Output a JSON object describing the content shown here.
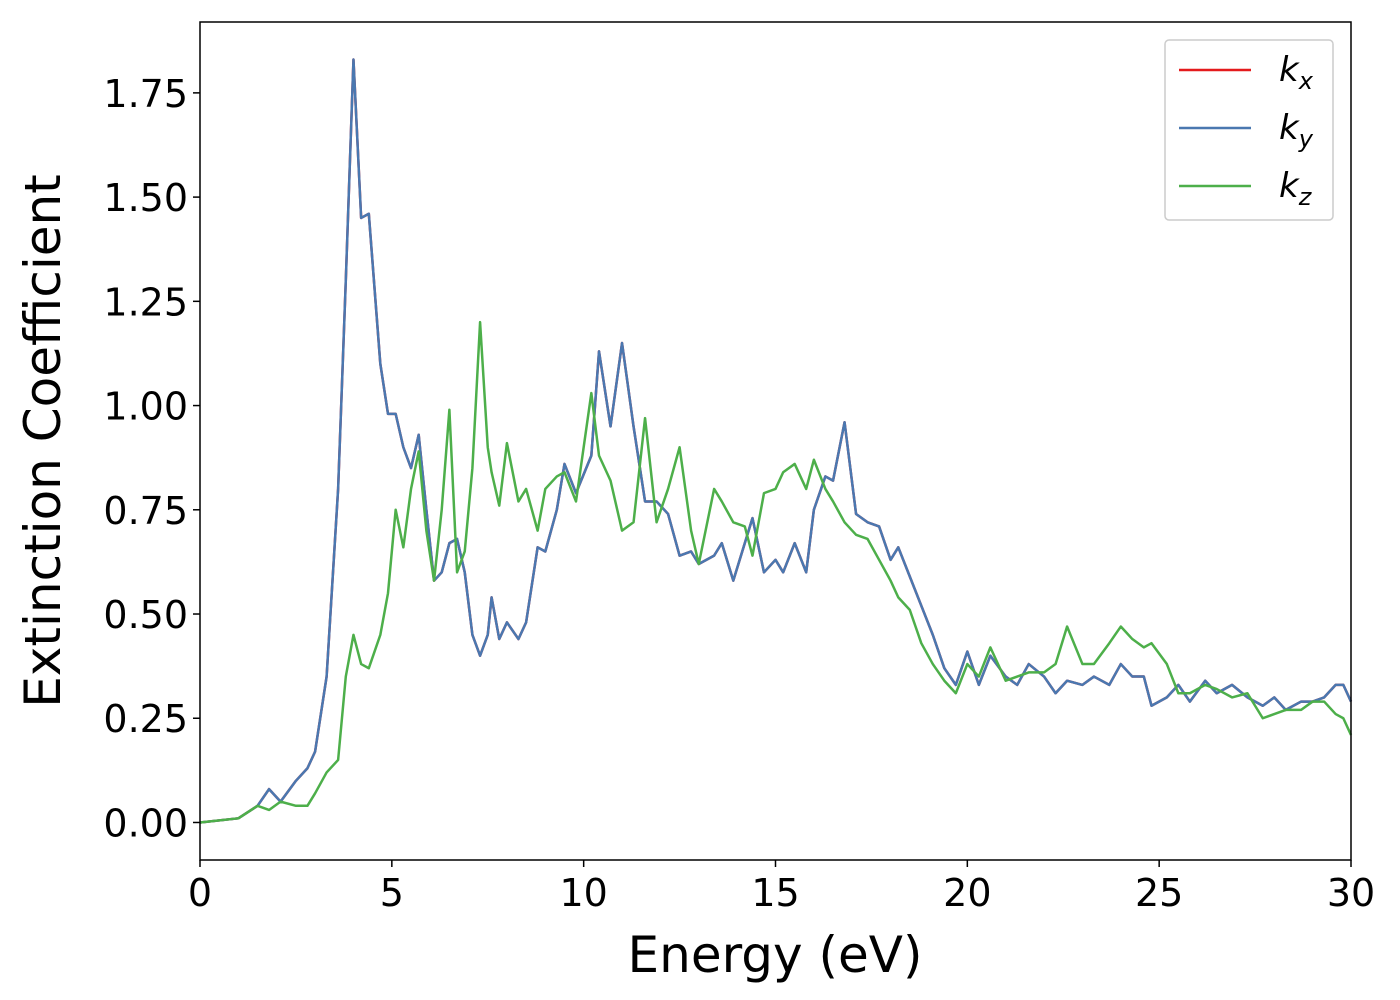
{
  "chart_data": {
    "type": "line",
    "xlabel": "Energy (eV)",
    "ylabel": "Extinction Coefficient",
    "x": [
      0,
      1,
      1.5,
      1.8,
      2.1,
      2.5,
      2.8,
      3.0,
      3.3,
      3.6,
      3.8,
      4.0,
      4.2,
      4.4,
      4.7,
      4.9,
      5.1,
      5.3,
      5.5,
      5.7,
      5.9,
      6.1,
      6.3,
      6.5,
      6.7,
      6.9,
      7.1,
      7.3,
      7.5,
      7.6,
      7.8,
      8.0,
      8.3,
      8.5,
      8.8,
      9.0,
      9.3,
      9.5,
      9.8,
      10.2,
      10.4,
      10.7,
      11.0,
      11.3,
      11.6,
      11.9,
      12.2,
      12.5,
      12.8,
      13.0,
      13.4,
      13.6,
      13.9,
      14.2,
      14.4,
      14.7,
      15.0,
      15.2,
      15.5,
      15.8,
      16.0,
      16.3,
      16.5,
      16.8,
      17.1,
      17.4,
      17.7,
      18.0,
      18.2,
      18.5,
      18.8,
      19.1,
      19.4,
      19.7,
      20.0,
      20.3,
      20.6,
      21.0,
      21.3,
      21.6,
      22.0,
      22.3,
      22.6,
      23.0,
      23.3,
      23.7,
      24.0,
      24.3,
      24.6,
      24.8,
      25.2,
      25.5,
      25.8,
      26.2,
      26.5,
      26.9,
      27.3,
      27.7,
      28.0,
      28.3,
      28.7,
      29.0,
      29.3,
      29.6,
      29.8,
      30.0
    ],
    "series": [
      {
        "name": "kx",
        "color": "#e41a1c",
        "values": [
          0,
          0.01,
          0.04,
          0.08,
          0.05,
          0.1,
          0.13,
          0.17,
          0.35,
          0.8,
          1.3,
          1.83,
          1.45,
          1.46,
          1.1,
          0.98,
          0.98,
          0.9,
          0.85,
          0.93,
          0.75,
          0.58,
          0.6,
          0.67,
          0.68,
          0.6,
          0.45,
          0.4,
          0.45,
          0.54,
          0.44,
          0.48,
          0.44,
          0.48,
          0.66,
          0.65,
          0.75,
          0.86,
          0.79,
          0.88,
          1.13,
          0.95,
          1.15,
          0.95,
          0.77,
          0.77,
          0.74,
          0.64,
          0.65,
          0.62,
          0.64,
          0.67,
          0.58,
          0.67,
          0.73,
          0.6,
          0.63,
          0.6,
          0.67,
          0.6,
          0.75,
          0.83,
          0.82,
          0.96,
          0.74,
          0.72,
          0.71,
          0.63,
          0.66,
          0.59,
          0.52,
          0.45,
          0.37,
          0.33,
          0.41,
          0.33,
          0.4,
          0.35,
          0.33,
          0.38,
          0.35,
          0.31,
          0.34,
          0.33,
          0.35,
          0.33,
          0.38,
          0.35,
          0.35,
          0.28,
          0.3,
          0.33,
          0.29,
          0.34,
          0.31,
          0.33,
          0.3,
          0.28,
          0.3,
          0.27,
          0.29,
          0.29,
          0.3,
          0.33,
          0.33,
          0.29
        ]
      },
      {
        "name": "ky",
        "color": "#4a78b0",
        "values": [
          0,
          0.01,
          0.04,
          0.08,
          0.05,
          0.1,
          0.13,
          0.17,
          0.35,
          0.8,
          1.3,
          1.83,
          1.45,
          1.46,
          1.1,
          0.98,
          0.98,
          0.9,
          0.85,
          0.93,
          0.75,
          0.58,
          0.6,
          0.67,
          0.68,
          0.6,
          0.45,
          0.4,
          0.45,
          0.54,
          0.44,
          0.48,
          0.44,
          0.48,
          0.66,
          0.65,
          0.75,
          0.86,
          0.79,
          0.88,
          1.13,
          0.95,
          1.15,
          0.95,
          0.77,
          0.77,
          0.74,
          0.64,
          0.65,
          0.62,
          0.64,
          0.67,
          0.58,
          0.67,
          0.73,
          0.6,
          0.63,
          0.6,
          0.67,
          0.6,
          0.75,
          0.83,
          0.82,
          0.96,
          0.74,
          0.72,
          0.71,
          0.63,
          0.66,
          0.59,
          0.52,
          0.45,
          0.37,
          0.33,
          0.41,
          0.33,
          0.4,
          0.35,
          0.33,
          0.38,
          0.35,
          0.31,
          0.34,
          0.33,
          0.35,
          0.33,
          0.38,
          0.35,
          0.35,
          0.28,
          0.3,
          0.33,
          0.29,
          0.34,
          0.31,
          0.33,
          0.3,
          0.28,
          0.3,
          0.27,
          0.29,
          0.29,
          0.3,
          0.33,
          0.33,
          0.29
        ]
      },
      {
        "name": "kz",
        "color": "#4daf4a",
        "values": [
          0,
          0.01,
          0.04,
          0.03,
          0.05,
          0.04,
          0.04,
          0.07,
          0.12,
          0.15,
          0.35,
          0.45,
          0.38,
          0.37,
          0.45,
          0.55,
          0.75,
          0.66,
          0.8,
          0.89,
          0.7,
          0.58,
          0.75,
          0.99,
          0.6,
          0.65,
          0.85,
          1.2,
          0.9,
          0.84,
          0.76,
          0.91,
          0.77,
          0.8,
          0.7,
          0.8,
          0.83,
          0.84,
          0.77,
          1.03,
          0.88,
          0.82,
          0.7,
          0.72,
          0.97,
          0.72,
          0.8,
          0.9,
          0.7,
          0.62,
          0.8,
          0.77,
          0.72,
          0.71,
          0.64,
          0.79,
          0.8,
          0.84,
          0.86,
          0.8,
          0.87,
          0.8,
          0.77,
          0.72,
          0.69,
          0.68,
          0.63,
          0.58,
          0.54,
          0.51,
          0.43,
          0.38,
          0.34,
          0.31,
          0.38,
          0.35,
          0.42,
          0.34,
          0.35,
          0.36,
          0.36,
          0.38,
          0.47,
          0.38,
          0.38,
          0.43,
          0.47,
          0.44,
          0.42,
          0.43,
          0.38,
          0.31,
          0.31,
          0.33,
          0.32,
          0.3,
          0.31,
          0.25,
          0.26,
          0.27,
          0.27,
          0.29,
          0.29,
          0.26,
          0.25,
          0.21
        ]
      }
    ],
    "xlim": [
      0,
      30
    ],
    "xticks": [
      0,
      5,
      10,
      15,
      20,
      25,
      30
    ],
    "ylim": [
      -0.09,
      1.92
    ],
    "yticks": [
      {
        "value": 0,
        "label": "0.00"
      },
      0.25,
      {
        "value": 0.5,
        "label": "0.50"
      },
      0.75,
      {
        "value": 1.0,
        "label": "1.00"
      },
      1.25,
      {
        "value": 1.5,
        "label": "1.50"
      },
      1.75
    ],
    "legend": "upper right"
  }
}
